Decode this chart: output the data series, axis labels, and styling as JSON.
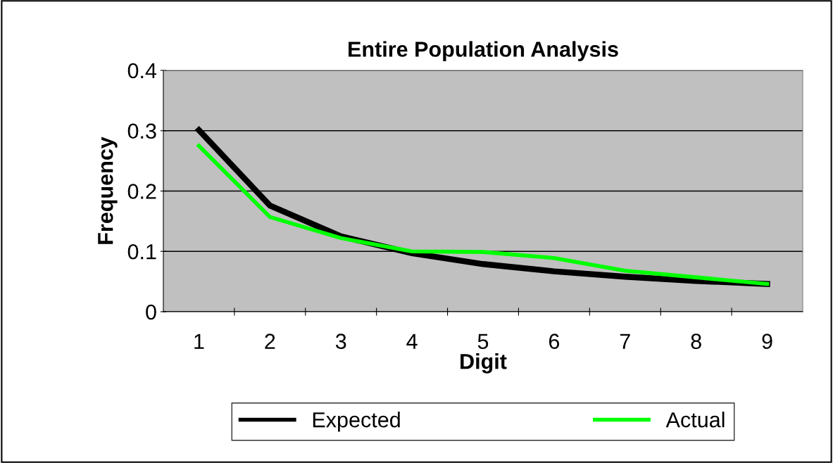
{
  "chart_data": {
    "type": "line",
    "title": "Entire Population Analysis",
    "xlabel": "Digit",
    "ylabel": "Frequency",
    "categories": [
      "1",
      "2",
      "3",
      "4",
      "5",
      "6",
      "7",
      "8",
      "9"
    ],
    "series": [
      {
        "name": "Expected",
        "color": "#000000",
        "values": [
          0.301,
          0.176,
          0.125,
          0.097,
          0.079,
          0.067,
          0.058,
          0.051,
          0.046
        ]
      },
      {
        "name": "Actual",
        "color": "#00ff00",
        "values": [
          0.275,
          0.157,
          0.122,
          0.1,
          0.099,
          0.089,
          0.068,
          0.057,
          0.046
        ]
      }
    ],
    "ylim": [
      0,
      0.4
    ],
    "yticks": [
      0,
      0.1,
      0.2,
      0.3,
      0.4
    ],
    "grid": "y",
    "legend": "bottom",
    "marker": "none",
    "line_style": "solid"
  }
}
